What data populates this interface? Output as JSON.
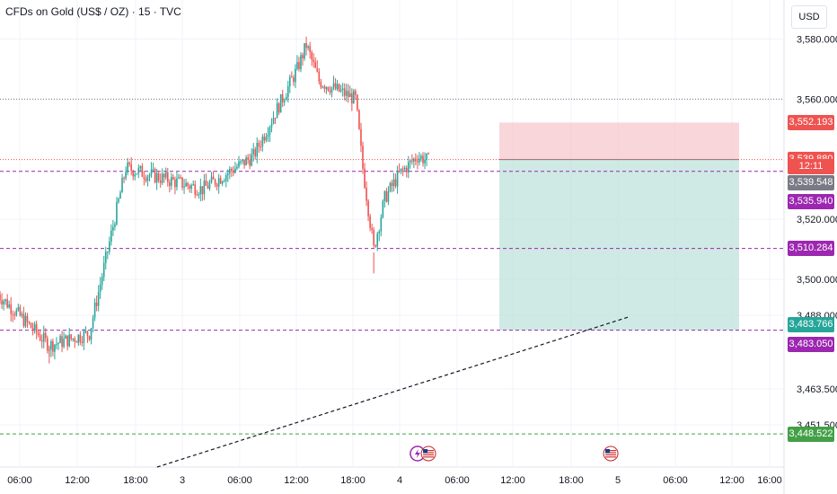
{
  "title": "CFDs on Gold (US$ / OZ) · 15 · TVC",
  "currency": "USD",
  "colors": {
    "up": "#26a69a",
    "down": "#ef5350",
    "purple": "#9c27b0",
    "green_line": "#43a047",
    "stop_zone": "#f7c5cb",
    "target_zone": "#bfe3db",
    "grid": "#f0f3fa",
    "dotted": "#787b86"
  },
  "price_tags": [
    {
      "label": "3,552.193",
      "price": 3552.193,
      "color": "#ef5350"
    },
    {
      "label": "3,539.880",
      "price": 3539.88,
      "color": "#ef5350"
    },
    {
      "label": "12:11",
      "price": 3537.5,
      "color": "#ef5350"
    },
    {
      "label": "3,539.548",
      "price": 3532.2,
      "color": "#787b86"
    },
    {
      "label": "3,535.940",
      "price": 3526.0,
      "color": "#9c27b0"
    },
    {
      "label": "3,510.284",
      "price": 3510.284,
      "color": "#9c27b0"
    },
    {
      "label": "3,483.766",
      "price": 3485.0,
      "color": "#26a69a"
    },
    {
      "label": "3,483.050",
      "price": 3478.2,
      "color": "#9c27b0"
    },
    {
      "label": "3,448.522",
      "price": 3448.522,
      "color": "#43a047"
    }
  ],
  "chart_data": {
    "type": "candlestick",
    "title": "CFDs on Gold (US$ / OZ) · 15 · TVC",
    "ylim": [
      3437.5,
      3593.0
    ],
    "y_ticks": [
      {
        "label": "3,580.000",
        "value": 3580.0
      },
      {
        "label": "3,560.000",
        "value": 3560.0
      },
      {
        "label": "3,520.000",
        "value": 3520.0
      },
      {
        "label": "3,500.000",
        "value": 3500.0
      },
      {
        "label": "3,488.000",
        "value": 3488.0
      },
      {
        "label": "3,463.500",
        "value": 3463.5
      },
      {
        "label": "3,451.500",
        "value": 3451.5
      }
    ],
    "x_ticks": [
      "06:00",
      "12:00",
      "18:00",
      "3",
      "06:00",
      "12:00",
      "18:00",
      "4",
      "06:00",
      "12:00",
      "18:00",
      "5",
      "06:00",
      "12:00",
      "16:00"
    ],
    "horizontal_lines": [
      {
        "price": 3560.0,
        "style": "dotted",
        "color": "#787b86"
      },
      {
        "price": 3539.88,
        "style": "dotted",
        "color": "#ef5350"
      },
      {
        "price": 3535.94,
        "style": "dashed",
        "color": "#9c27b0"
      },
      {
        "price": 3510.284,
        "style": "dashed",
        "color": "#9c27b0"
      },
      {
        "price": 3483.05,
        "style": "dashed",
        "color": "#9c27b0"
      },
      {
        "price": 3448.522,
        "style": "dashed",
        "color": "#43a047"
      }
    ],
    "position": {
      "entry": 3539.88,
      "stop": 3552.193,
      "target": 3483.05
    },
    "key_points": [
      {
        "time": "2 Sep 00:00",
        "price": 3495
      },
      {
        "time": "2 Sep 07:00",
        "price": 3478
      },
      {
        "time": "2 Sep 12:30",
        "price": 3482
      },
      {
        "time": "2 Sep 17:30",
        "price": 3537
      },
      {
        "time": "3 Sep 04:00",
        "price": 3530
      },
      {
        "time": "3 Sep 11:00",
        "price": 3541
      },
      {
        "time": "3 Sep 17:00",
        "price": 3570
      },
      {
        "time": "3 Sep 18:15",
        "price": 3578
      },
      {
        "time": "3 Sep 20:00",
        "price": 3566
      },
      {
        "time": "4 Sep 01:00",
        "price": 3560
      },
      {
        "time": "4 Sep 02:00",
        "price": 3537
      },
      {
        "time": "4 Sep 03:30",
        "price": 3510
      },
      {
        "time": "4 Sep 05:00",
        "price": 3527
      },
      {
        "time": "4 Sep 07:00",
        "price": 3535
      },
      {
        "time": "4 Sep 09:30",
        "price": 3541
      },
      {
        "time": "4 Sep 11:00",
        "price": 3539.5
      }
    ],
    "trendline": [
      {
        "time": "3 Sep 00:00",
        "price": 3437.5
      },
      {
        "time": "5 Sep 14:30",
        "price": 3487.5
      }
    ],
    "event_icons": [
      {
        "name": "lightning-icon",
        "time": "4 Sep 09:30"
      },
      {
        "name": "us-flag-icon",
        "time": "4 Sep 11:00"
      },
      {
        "name": "us-flag-icon",
        "time": "5 Sep 12:00"
      }
    ]
  }
}
